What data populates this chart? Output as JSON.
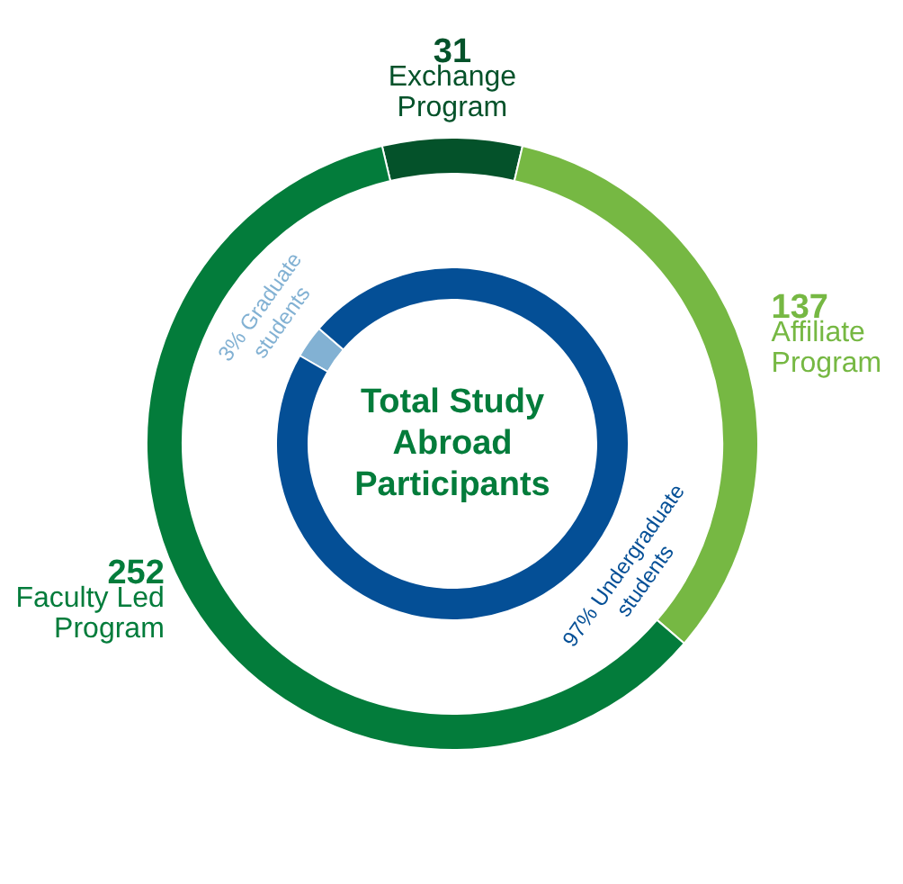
{
  "chart_data": {
    "type": "donut",
    "title": "Total Study Abroad Participants",
    "data_labels": true,
    "categories": [
      "Exchange Program",
      "Affiliate Program",
      "Faculty Led Program",
      "Graduate students",
      "Undergraduate students"
    ],
    "colors": [
      "#04522a",
      "#76b843",
      "#037c3b",
      "#82b1d3",
      "#044f96"
    ],
    "series": [
      {
        "values": [
          31,
          137,
          252,
          null,
          null
        ]
      },
      {
        "values": [
          null,
          null,
          null,
          3,
          97
        ],
        "value_labels": [
          null,
          null,
          null,
          "3%",
          "97%"
        ]
      }
    ]
  }
}
